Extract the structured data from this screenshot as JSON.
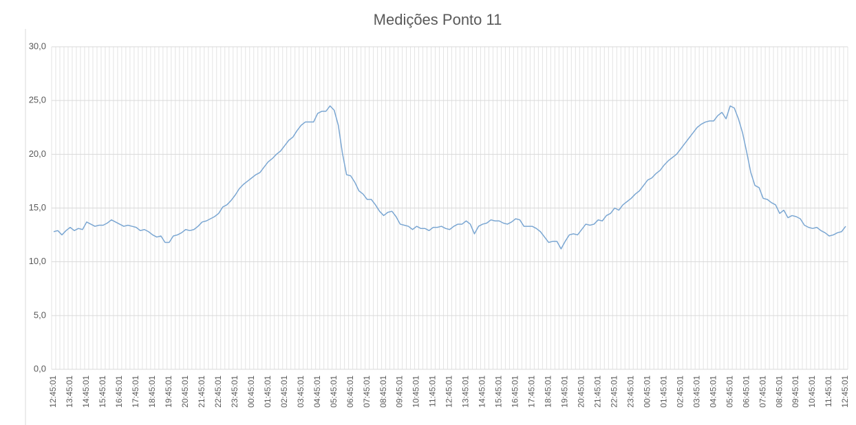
{
  "chart_data": {
    "type": "line",
    "title": "Medições Ponto 11",
    "categories": [
      "12:45:01",
      null,
      null,
      null,
      "13:45:01",
      null,
      null,
      null,
      "14:45:01",
      null,
      null,
      null,
      "15:45:01",
      null,
      null,
      null,
      "16:45:01",
      null,
      null,
      null,
      "17:45:01",
      null,
      null,
      null,
      "18:45:01",
      null,
      null,
      null,
      "19:45:01",
      null,
      null,
      null,
      "20:45:01",
      null,
      null,
      null,
      "21:45:01",
      null,
      null,
      null,
      "22:45:01",
      null,
      null,
      null,
      "23:45:01",
      null,
      null,
      null,
      "00:45:01",
      null,
      null,
      null,
      "01:45:01",
      null,
      null,
      null,
      "02:45:01",
      null,
      null,
      null,
      "03:45:01",
      null,
      null,
      null,
      "04:45:01",
      null,
      null,
      null,
      "05:45:01",
      null,
      null,
      null,
      "06:45:01",
      null,
      null,
      null,
      "07:45:01",
      null,
      null,
      null,
      "08:45:01",
      null,
      null,
      null,
      "09:45:01",
      null,
      null,
      null,
      "10:45:01",
      null,
      null,
      null,
      "11:45:01",
      null,
      null,
      null,
      "12:45:01",
      null,
      null,
      null,
      "13:45:01",
      null,
      null,
      null,
      "14:45:01",
      null,
      null,
      null,
      "15:45:01",
      null,
      null,
      null,
      "16:45:01",
      null,
      null,
      null,
      "17:45:01",
      null,
      null,
      null,
      "18:45:01",
      null,
      null,
      null,
      "19:45:01",
      null,
      null,
      null,
      "20:45:01",
      null,
      null,
      null,
      "21:45:01",
      null,
      null,
      null,
      "22:45:01",
      null,
      null,
      null,
      "23:45:01",
      null,
      null,
      null,
      "00:45:01",
      null,
      null,
      null,
      "01:45:01",
      null,
      null,
      null,
      "02:45:01",
      null,
      null,
      null,
      "03:45:01",
      null,
      null,
      null,
      "04:45:01",
      null,
      null,
      null,
      "05:45:01",
      null,
      null,
      null,
      "06:45:01",
      null,
      null,
      null,
      "07:45:01",
      null,
      null,
      null,
      "08:45:01",
      null,
      null,
      null,
      "09:45:01",
      null,
      null,
      null,
      "10:45:01",
      null,
      null,
      null,
      "11:45:01",
      null,
      null,
      null,
      "12:45:01"
    ],
    "values": [
      12.8,
      12.9,
      12.5,
      12.9,
      13.2,
      12.9,
      13.1,
      13.0,
      13.7,
      13.5,
      13.3,
      13.4,
      13.4,
      13.6,
      13.9,
      13.7,
      13.5,
      13.3,
      13.4,
      13.3,
      13.2,
      12.9,
      13.0,
      12.8,
      12.5,
      12.3,
      12.4,
      11.8,
      11.8,
      12.4,
      12.5,
      12.7,
      13.0,
      12.9,
      13.0,
      13.3,
      13.7,
      13.8,
      14.0,
      14.2,
      14.5,
      15.1,
      15.3,
      15.7,
      16.2,
      16.8,
      17.2,
      17.5,
      17.8,
      18.1,
      18.3,
      18.8,
      19.3,
      19.6,
      20.0,
      20.3,
      20.8,
      21.3,
      21.6,
      22.2,
      22.7,
      23.0,
      23.0,
      23.0,
      23.8,
      24.0,
      24.0,
      24.5,
      24.1,
      22.7,
      20.1,
      18.1,
      18.0,
      17.4,
      16.6,
      16.3,
      15.8,
      15.8,
      15.3,
      14.7,
      14.3,
      14.6,
      14.7,
      14.2,
      13.5,
      13.4,
      13.3,
      13.0,
      13.3,
      13.1,
      13.1,
      12.9,
      13.2,
      13.2,
      13.3,
      13.1,
      13.0,
      13.3,
      13.5,
      13.5,
      13.8,
      13.5,
      12.6,
      13.3,
      13.5,
      13.6,
      13.9,
      13.8,
      13.8,
      13.6,
      13.5,
      13.7,
      14.0,
      13.9,
      13.3,
      13.3,
      13.3,
      13.1,
      12.8,
      12.3,
      11.8,
      11.9,
      11.9,
      11.2,
      11.9,
      12.5,
      12.6,
      12.5,
      13.0,
      13.5,
      13.4,
      13.5,
      13.9,
      13.8,
      14.3,
      14.5,
      15.0,
      14.8,
      15.3,
      15.6,
      15.9,
      16.3,
      16.6,
      17.1,
      17.6,
      17.8,
      18.2,
      18.5,
      19.0,
      19.4,
      19.7,
      20.0,
      20.5,
      21.0,
      21.5,
      22.0,
      22.5,
      22.8,
      23.0,
      23.1,
      23.1,
      23.6,
      23.9,
      23.3,
      24.5,
      24.3,
      23.3,
      22.0,
      20.2,
      18.3,
      17.1,
      16.9,
      15.9,
      15.8,
      15.5,
      15.3,
      14.5,
      14.8,
      14.1,
      14.3,
      14.2,
      14.0,
      13.4,
      13.2,
      13.1,
      13.2,
      12.9,
      12.7,
      12.4,
      12.5,
      12.7,
      12.8,
      13.3
    ],
    "color": "#7aa6d2",
    "ylim": [
      0,
      30
    ],
    "yticks": [
      {
        "value": 0,
        "label": "0,0"
      },
      {
        "value": 5,
        "label": "5,0"
      },
      {
        "value": 10,
        "label": "10,0"
      },
      {
        "value": 15,
        "label": "15,0"
      },
      {
        "value": 20,
        "label": "20,0"
      },
      {
        "value": 25,
        "label": "25,0"
      },
      {
        "value": 30,
        "label": "30,0"
      }
    ],
    "grid": true
  }
}
